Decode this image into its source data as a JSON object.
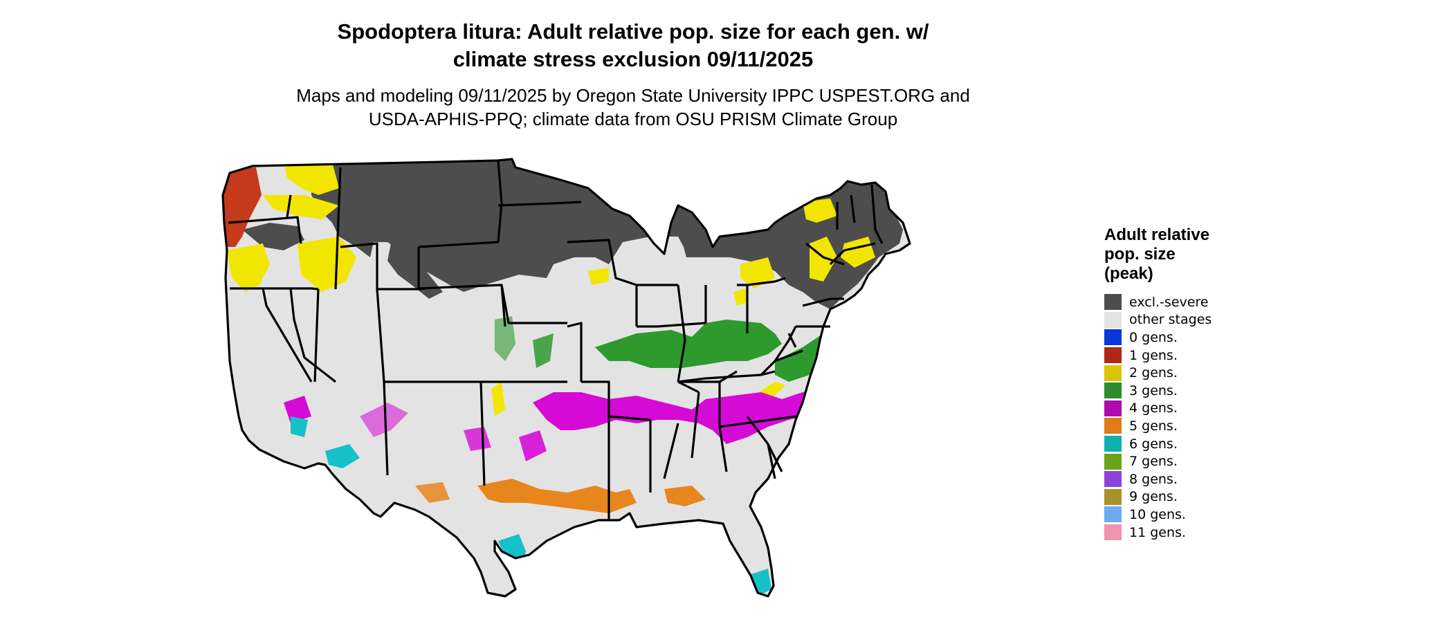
{
  "title": {
    "line1": "Spodoptera litura: Adult relative pop. size for each gen. w/",
    "line2": "climate stress exclusion 09/11/2025"
  },
  "subtitle": {
    "line1": "Maps and modeling 09/11/2025 by Oregon State University IPPC USPEST.ORG and",
    "line2": "USDA-APHIS-PPQ; climate data from OSU PRISM Climate Group"
  },
  "legend": {
    "title_line1": "Adult relative",
    "title_line2": "pop. size",
    "title_line3": "(peak)",
    "items": [
      {
        "label": "excl.-severe",
        "color": "#4d4d4d"
      },
      {
        "label": "other stages",
        "color": "#e3e3e3"
      },
      {
        "label": "0 gens.",
        "color": "#0a37d9"
      },
      {
        "label": "1 gens.",
        "color": "#b02814"
      },
      {
        "label": "2 gens.",
        "color": "#d9c40a"
      },
      {
        "label": "3 gens.",
        "color": "#2e8b2e"
      },
      {
        "label": "4 gens.",
        "color": "#b00ab0"
      },
      {
        "label": "5 gens.",
        "color": "#e07c1a"
      },
      {
        "label": "6 gens.",
        "color": "#11b0b0"
      },
      {
        "label": "7 gens.",
        "color": "#6aa317"
      },
      {
        "label": "8 gens.",
        "color": "#8b44d9"
      },
      {
        "label": "9 gens.",
        "color": "#a8902a"
      },
      {
        "label": "10 gens.",
        "color": "#6eaaf0"
      },
      {
        "label": "11 gens.",
        "color": "#f094b0"
      }
    ]
  },
  "map": {
    "region": "Contiguous United States",
    "fill_colors": {
      "excluded": "#4d4d4d",
      "other": "#e3e3e3",
      "gen1": "#c43a1a",
      "gen2": "#f2e600",
      "gen3": "#2e9a2e",
      "gen4": "#d60ad6",
      "gen5": "#e8861e",
      "gen6": "#16c0c8",
      "border": "#000000"
    }
  }
}
